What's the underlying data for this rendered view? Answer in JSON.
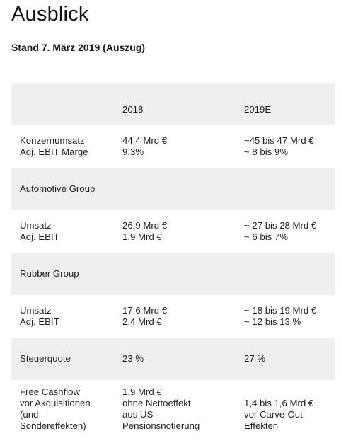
{
  "page": {
    "title": "Ausblick",
    "subtitle": "Stand 7. März 2019 (Auszug)"
  },
  "table": {
    "columns": [
      "",
      "2018",
      "2019E"
    ],
    "rows": [
      {
        "label": [
          "Konzernumsatz",
          "Adj. EBIT Marge"
        ],
        "v2018": [
          "44,4 Mrd €",
          "9,3%"
        ],
        "v2019": [
          "~45 bis 47 Mrd €",
          "~ 8 bis 9%"
        ]
      },
      {
        "section": "Automotive Group"
      },
      {
        "label": [
          "Umsatz",
          "Adj. EBIT"
        ],
        "v2018": [
          "26,9 Mrd €",
          "1,9 Mrd €"
        ],
        "v2019": [
          "~ 27 bis 28 Mrd €",
          "~ 6 bis 7%"
        ]
      },
      {
        "section": "Rubber Group"
      },
      {
        "label": [
          "Umsatz",
          "Adj. EBIT"
        ],
        "v2018": [
          "17,6 Mrd €",
          "2,4 Mrd €"
        ],
        "v2019": [
          "~ 18 bis 19 Mrd €",
          "~ 12 bis 13 %"
        ]
      },
      {
        "label": [
          "Steuerquote"
        ],
        "v2018": [
          "23 %"
        ],
        "v2019": [
          "27 %"
        ]
      },
      {
        "label": [
          "Free Cashflow",
          "vor Akquisitionen",
          "(und",
          "Sondereffekten)"
        ],
        "v2018": [
          "1,9 Mrd €",
          "ohne Nettoeffekt",
          "aus US-",
          "Pensionsnotierung"
        ],
        "v2019": [
          "1,4 bis 1,6 Mrd €",
          "vor Carve-Out",
          "Effekten"
        ]
      }
    ]
  }
}
